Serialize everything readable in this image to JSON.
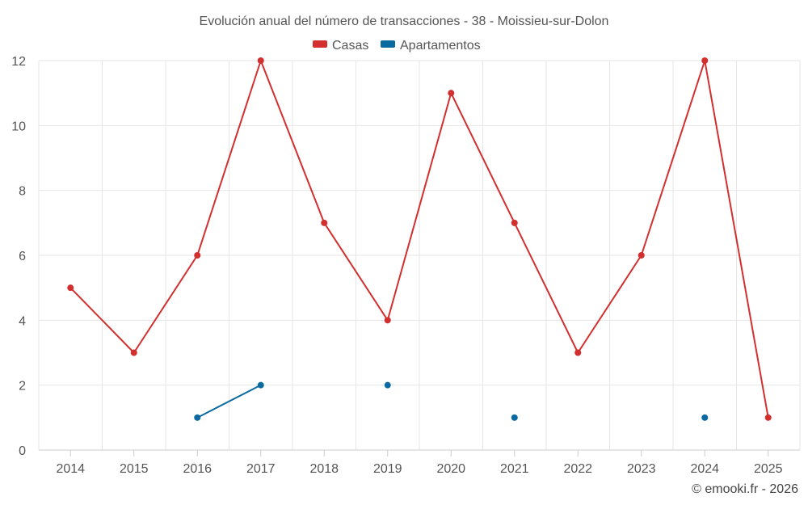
{
  "chart_data": {
    "type": "line",
    "title": "Evolución anual del número de transacciones - 38 - Moissieu-sur-Dolon",
    "categories": [
      "2014",
      "2015",
      "2016",
      "2017",
      "2018",
      "2019",
      "2020",
      "2021",
      "2022",
      "2023",
      "2024",
      "2025"
    ],
    "ylim": [
      0,
      12
    ],
    "yticks": [
      0,
      2,
      4,
      6,
      8,
      10,
      12
    ],
    "grid": true,
    "legend_position": "top-center",
    "series": [
      {
        "name": "Casas",
        "color": "#d32f2f",
        "values": [
          5,
          3,
          6,
          12,
          7,
          4,
          11,
          7,
          3,
          6,
          12,
          1
        ]
      },
      {
        "name": "Apartamentos",
        "color": "#0a6aa1",
        "values": [
          null,
          null,
          1,
          2,
          null,
          2,
          null,
          1,
          null,
          null,
          1,
          null
        ]
      }
    ],
    "credit": "© emooki.fr - 2026"
  }
}
